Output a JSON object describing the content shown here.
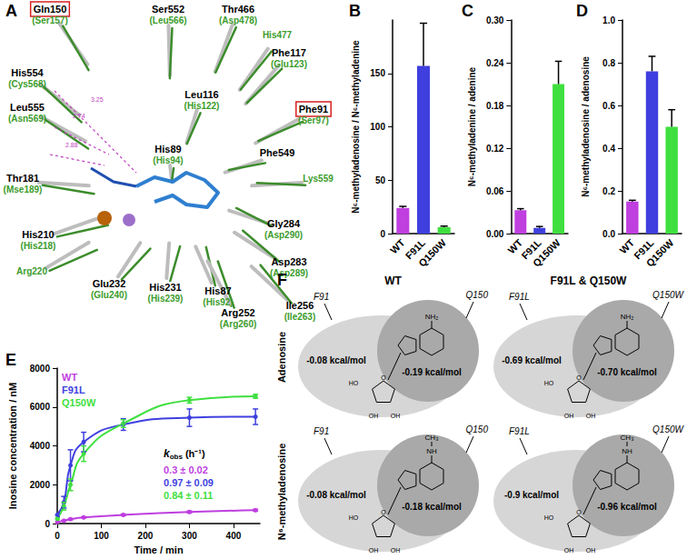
{
  "panel_labels": [
    "A",
    "B",
    "C",
    "D",
    "E",
    "F"
  ],
  "structure": {
    "residues": [
      {
        "label": "Gln150",
        "alt": "(Ser157)",
        "highlight": true
      },
      {
        "label": "Ser552",
        "alt": "(Leu566)"
      },
      {
        "label": "Thr466",
        "alt": "(Asp478)"
      },
      {
        "alt": "His477"
      },
      {
        "label": "Phe117",
        "alt": "(Glu123)"
      },
      {
        "label": "His554",
        "alt": "(Cys568)"
      },
      {
        "label": "Leu555",
        "alt": "(Asn569)"
      },
      {
        "label": "Leu116",
        "alt": "(His122)"
      },
      {
        "label": "Phe91",
        "alt": "(Ser97)",
        "highlight": true
      },
      {
        "label": "Phe549"
      },
      {
        "label": "His89",
        "alt": "(His94)"
      },
      {
        "alt": "Lys559"
      },
      {
        "label": "Thr181",
        "alt": "(Mse189)"
      },
      {
        "label": "Gly284",
        "alt": "(Asp290)"
      },
      {
        "label": "His210",
        "alt": "(His218)"
      },
      {
        "label": "Asp283",
        "alt": "(Asp289)"
      },
      {
        "alt": "Arg220"
      },
      {
        "label": "Glu232",
        "alt": "(Glu240)"
      },
      {
        "label": "His231",
        "alt": "(His239)"
      },
      {
        "label": "His87",
        "alt": "(His92)"
      },
      {
        "label": "Arg252",
        "alt": "(Arg260)"
      },
      {
        "label": "Ile256",
        "alt": "(Ile263)"
      }
    ],
    "distances": [
      "3.25",
      "2.74",
      "2.88"
    ]
  },
  "chart_data": [
    {
      "type": "bar",
      "ylabel": "N⁶-methyladenosine / N⁶-methyladenine",
      "categories": [
        "WT",
        "F91L",
        "Q150W"
      ],
      "values": [
        24,
        157,
        6
      ],
      "errors": [
        1.5,
        40,
        1
      ],
      "colors": [
        "#bf3fdf",
        "#3f3fdf",
        "#3fdf3f"
      ],
      "ylim": [
        0,
        200
      ],
      "yticks": [
        0,
        50,
        100,
        150
      ],
      "grid": false
    },
    {
      "type": "bar",
      "ylabel": "N⁶-methyladenine / adenine",
      "categories": [
        "WT",
        "F91L",
        "Q150W"
      ],
      "values": [
        0.033,
        0.008,
        0.21
      ],
      "errors": [
        0.002,
        0.002,
        0.032
      ],
      "colors": [
        "#bf3fdf",
        "#3f3fdf",
        "#3fdf3f"
      ],
      "ylim": [
        0,
        0.3
      ],
      "yticks": [
        {
          "value": 0,
          "label": "0.00"
        },
        0.06,
        0.12,
        0.18,
        0.24,
        {
          "value": 0.3,
          "label": "0.30"
        }
      ],
      "grid": false
    },
    {
      "type": "bar",
      "ylabel": "N⁶-methyladenosine / adenosine",
      "categories": [
        "WT",
        "F91L",
        "Q150W"
      ],
      "values": [
        0.15,
        0.76,
        0.5
      ],
      "errors": [
        0.006,
        0.07,
        0.08
      ],
      "colors": [
        "#bf3fdf",
        "#3f3fdf",
        "#3fdf3f"
      ],
      "ylim": [
        0,
        1
      ],
      "yticks": [
        {
          "value": 0,
          "label": "0.0"
        },
        0.2,
        0.4,
        0.6,
        0.8,
        {
          "value": 1,
          "label": "1.0"
        }
      ],
      "grid": false
    },
    {
      "type": "line",
      "xlabel": "Time / min",
      "ylabel": "Inosine concentration / nM",
      "x": [
        0,
        15,
        30,
        60,
        150,
        300,
        450
      ],
      "series": [
        {
          "name": "WT",
          "color": "#bf3fdf",
          "marker": "circle",
          "values": [
            80,
            150,
            230,
            320,
            450,
            600,
            690
          ],
          "errors": [
            20,
            20,
            30,
            30,
            40,
            50,
            50
          ]
        },
        {
          "name": "F91L",
          "color": "#3f3fdf",
          "marker": "circle",
          "values": [
            450,
            1100,
            3000,
            4200,
            5100,
            5450,
            5500
          ],
          "errors": [
            100,
            300,
            800,
            500,
            300,
            450,
            400
          ]
        },
        {
          "name": "Q150W",
          "color": "#3fdf3f",
          "marker": "circle",
          "values": [
            250,
            900,
            2000,
            3600,
            5150,
            6350,
            6550
          ],
          "errors": [
            50,
            200,
            300,
            400,
            200,
            150,
            100
          ]
        }
      ],
      "xlim": [
        0,
        460
      ],
      "xticks": [
        0,
        100,
        200,
        300,
        400
      ],
      "ylim": [
        0,
        8000
      ],
      "yticks": [
        0,
        2000,
        4000,
        6000,
        8000
      ],
      "legend": "top-left",
      "grid": false,
      "annotation": {
        "symbol": "k",
        "subscript": "obs",
        "unit": "(h⁻¹)",
        "values": [
          "0.3 ± 0.02",
          "0.97 ± 0.09",
          "0.84 ± 0.11"
        ]
      }
    }
  ],
  "diagram": {
    "columns": [
      "WT",
      "F91L & Q150W"
    ],
    "rows": [
      {
        "label": "Adenosine",
        "amine": [
          "NH₂"
        ],
        "cells": [
          {
            "residues": [
              "F91",
              "Q150"
            ],
            "energies": [
              "-0.08 kcal/mol",
              "-0.19 kcal/mol"
            ]
          },
          {
            "residues": [
              "F91L",
              "Q150W"
            ],
            "energies": [
              "-0.69 kcal/mol",
              "-0.70 kcal/mol"
            ]
          }
        ]
      },
      {
        "label": "N⁶-methyladenosine",
        "amine": [
          "NH",
          "CH₃"
        ],
        "cells": [
          {
            "residues": [
              "F91",
              "Q150"
            ],
            "energies": [
              "-0.08 kcal/mol",
              "-0.18 kcal/mol"
            ]
          },
          {
            "residues": [
              "F91L",
              "Q150W"
            ],
            "energies": [
              "-0.9 kcal/mol",
              "-0.96 kcal/mol"
            ]
          }
        ]
      }
    ],
    "ribose": [
      "HO",
      "O",
      "OH",
      "OH"
    ]
  }
}
